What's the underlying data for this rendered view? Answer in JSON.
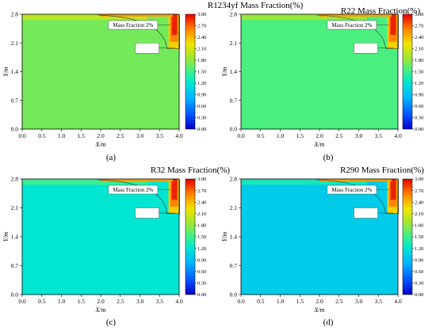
{
  "chart_data": [
    {
      "type": "heatmap",
      "panel": "(a)",
      "title": "R1234yf Mass Fraction(%)",
      "xlabel": "X/m",
      "ylabel": "Y/m",
      "xlim": [
        0,
        4.0
      ],
      "ylim": [
        0,
        2.8
      ],
      "x_ticks": [
        "0.0",
        "0.5",
        "1.0",
        "1.5",
        "2.0",
        "2.5",
        "3.0",
        "3.5",
        "4.0"
      ],
      "y_ticks": [
        "0.0",
        "0.7",
        "1.4",
        "2.1",
        "2.8"
      ],
      "colorbar_range": [
        0,
        3.0
      ],
      "colorbar_ticks": [
        "0.00",
        "0.30",
        "0.60",
        "0.90",
        "1.20",
        "1.50",
        "1.80",
        "2.10",
        "2.40",
        "2.70",
        "3.00"
      ],
      "annotation": "Mass Fraction 2%",
      "background_value": 1.7,
      "leak_source_x": 3.85,
      "dominant_color": "#7ed83a"
    },
    {
      "type": "heatmap",
      "panel": "(b)",
      "title": "R22 Mass Fraction(%)",
      "xlabel": "X/m",
      "ylabel": "Y/m",
      "xlim": [
        0,
        4.0
      ],
      "ylim": [
        0,
        2.8
      ],
      "x_ticks": [
        "0.0",
        "0.5",
        "1.0",
        "1.5",
        "2.0",
        "2.5",
        "3.0",
        "3.5",
        "4.0"
      ],
      "y_ticks": [
        "0.0",
        "0.7",
        "1.4",
        "2.1",
        "2.8"
      ],
      "colorbar_range": [
        0,
        3.0
      ],
      "colorbar_ticks": [
        "0.00",
        "0.30",
        "0.60",
        "0.90",
        "1.20",
        "1.50",
        "1.80",
        "2.10",
        "2.40",
        "2.70",
        "3.00"
      ],
      "annotation": "Mass Fraction 2%",
      "background_value": 1.55,
      "leak_source_x": 3.85,
      "dominant_color": "#8fdc4a"
    },
    {
      "type": "heatmap",
      "panel": "(c)",
      "title": "R32 Mass Fraction(%)",
      "xlabel": "X/m",
      "ylabel": "Y/m",
      "xlim": [
        0,
        4.0
      ],
      "ylim": [
        0,
        2.8
      ],
      "x_ticks": [
        "0.0",
        "0.5",
        "1.0",
        "1.5",
        "2.0",
        "2.5",
        "3.0",
        "3.5",
        "4.0"
      ],
      "y_ticks": [
        "0.0",
        "0.7",
        "1.4",
        "2.1",
        "2.8"
      ],
      "colorbar_range": [
        0,
        3.0
      ],
      "colorbar_ticks": [
        "0.00",
        "0.30",
        "0.60",
        "0.90",
        "1.20",
        "1.50",
        "1.80",
        "2.10",
        "2.40",
        "2.70",
        "3.00"
      ],
      "annotation": "Mass Fraction 2%",
      "background_value": 1.2,
      "leak_source_x": 3.85,
      "dominant_color": "#3ee0a8"
    },
    {
      "type": "heatmap",
      "panel": "(d)",
      "title": "R290 Mass Fraction(%)",
      "xlabel": "X/m",
      "ylabel": "Y/m",
      "xlim": [
        0,
        4.0
      ],
      "ylim": [
        0,
        2.8
      ],
      "x_ticks": [
        "0.0",
        "0.5",
        "1.0",
        "1.5",
        "2.0",
        "2.5",
        "3.0",
        "3.5",
        "4.0"
      ],
      "y_ticks": [
        "0.0",
        "0.7",
        "1.4",
        "2.1",
        "2.8"
      ],
      "colorbar_range": [
        0,
        3.0
      ],
      "colorbar_ticks": [
        "0.00",
        "0.30",
        "0.60",
        "0.90",
        "1.20",
        "1.50",
        "1.80",
        "2.10",
        "2.40",
        "2.70",
        "3.00"
      ],
      "annotation": "Mass Fraction 2%",
      "background_value": 1.0,
      "leak_source_x": 3.85,
      "dominant_color": "#2fe6d0"
    }
  ]
}
